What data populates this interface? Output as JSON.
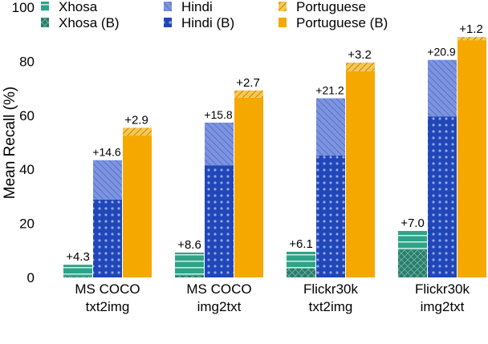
{
  "chart_data": {
    "type": "bar",
    "stacked": true,
    "ylabel": "Mean Recall (%)",
    "xlabel": "",
    "ylim": [
      0,
      100
    ],
    "yticks": [
      0,
      20,
      40,
      60,
      80,
      100
    ],
    "grid": false,
    "legend_placement": "top",
    "categories": [
      [
        "MS COCO",
        "txt2img"
      ],
      [
        "MS COCO",
        "img2txt"
      ],
      [
        "Flickr30k",
        "txt2img"
      ],
      [
        "Flickr30k",
        "img2txt"
      ]
    ],
    "series": [
      {
        "language": "Xhosa",
        "base_name": "Xhosa (B)",
        "gain_name": "Xhosa",
        "base": [
          0.4,
          0.6,
          3.4,
          10.2
        ],
        "gain": [
          4.3,
          8.6,
          6.1,
          7.0
        ],
        "gain_labels": [
          "+4.3",
          "+8.6",
          "+6.1",
          "+7.0"
        ],
        "base_color": "#2a7d6a",
        "gain_color": "#2ea388"
      },
      {
        "language": "Hindi",
        "base_name": "Hindi (B)",
        "gain_name": "Hindi",
        "base": [
          28.8,
          41.5,
          45.1,
          59.6
        ],
        "gain": [
          14.6,
          15.8,
          21.2,
          20.9
        ],
        "gain_labels": [
          "+14.6",
          "+15.8",
          "+21.2",
          "+20.9"
        ],
        "base_color": "#2046b8",
        "gain_color": "#7d94e0"
      },
      {
        "language": "Portuguese",
        "base_name": "Portuguese (B)",
        "gain_name": "Portuguese",
        "base": [
          52.5,
          66.5,
          76.3,
          87.8
        ],
        "gain": [
          2.9,
          2.7,
          3.2,
          1.2
        ],
        "gain_labels": [
          "+2.9",
          "+2.7",
          "+3.2",
          "+1.2"
        ],
        "base_color": "#f5a800",
        "gain_color": "#f8c84e"
      }
    ],
    "legend": [
      "Xhosa",
      "Hindi",
      "Portuguese",
      "Xhosa (B)",
      "Hindi (B)",
      "Portuguese (B)"
    ]
  }
}
